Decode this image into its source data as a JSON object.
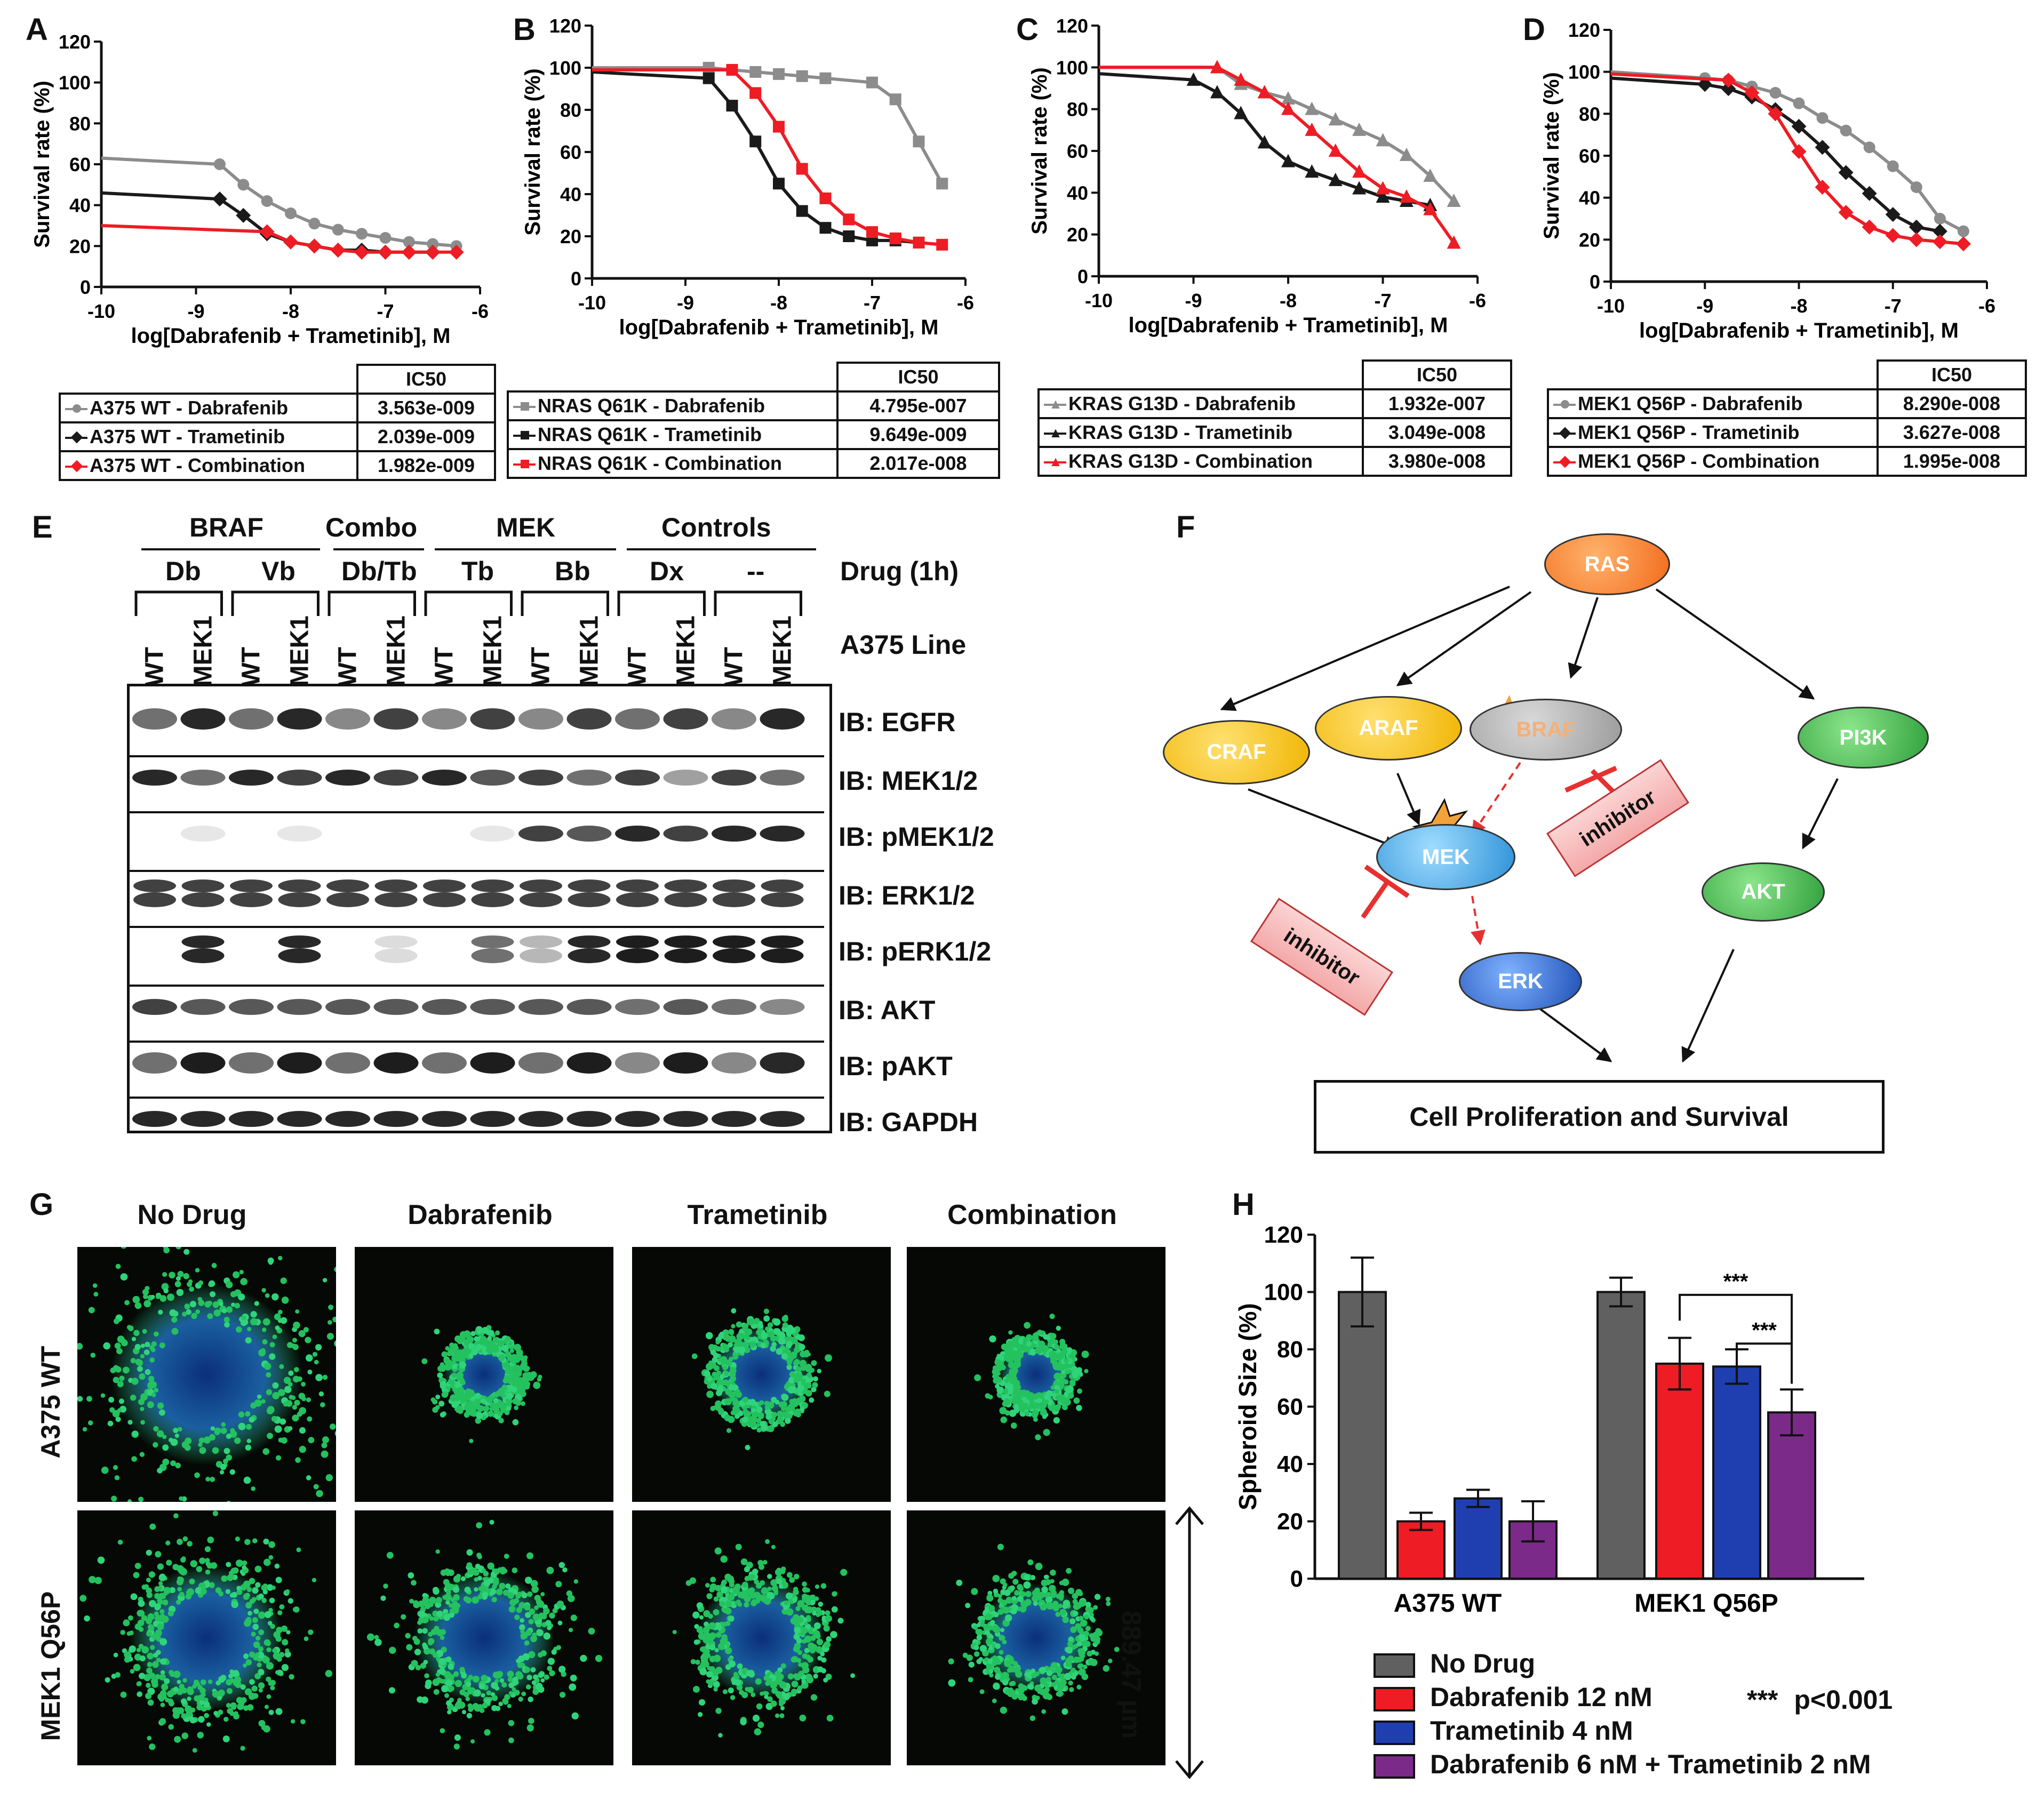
{
  "panels": {
    "A": "A",
    "B": "B",
    "C": "C",
    "D": "D",
    "E": "E",
    "F": "F",
    "G": "G",
    "H": "H"
  },
  "colors": {
    "gray": "#8c8c8c",
    "black": "#1a1a1a",
    "red": "#ee1c24",
    "blue": "#1f3fb0",
    "purple": "#7b2a8a",
    "darkgray": "#606060"
  },
  "curves": {
    "ylabel": "Survival rate (%)",
    "xlabel": "log[Dabrafenib + Trametinib], M",
    "yticks": [
      "0",
      "20",
      "40",
      "60",
      "80",
      "100",
      "120"
    ],
    "xticks": [
      "-10",
      "-9",
      "-8",
      "-7",
      "-6"
    ],
    "ic50_header": "IC50"
  },
  "chart_data": [
    {
      "type": "line",
      "panel": "A",
      "xlabel": "log[Dabrafenib + Trametinib], M",
      "ylabel": "Survival rate (%)",
      "xlim": [
        -10,
        -6
      ],
      "ylim": [
        0,
        120
      ],
      "series": [
        {
          "name": "A375 WT - Dabrafenib",
          "color": "gray",
          "ic50": "3.563e-009",
          "x": [
            -8.75,
            -8.5,
            -8.25,
            -8,
            -7.75,
            -7.5,
            -7.25,
            -7,
            -6.75,
            -6.5,
            -6.25
          ],
          "y": [
            60,
            50,
            42,
            36,
            31,
            28,
            26,
            24,
            22,
            21,
            20
          ]
        },
        {
          "name": "A375 WT - Trametinib",
          "color": "black",
          "ic50": "2.039e-009",
          "x": [
            -8.75,
            -8.5,
            -8.25,
            -8,
            -7.75,
            -7.5,
            -7.25,
            -7,
            -6.75,
            -6.5
          ],
          "y": [
            43,
            35,
            26,
            22,
            20,
            18,
            18,
            17,
            17,
            17
          ]
        },
        {
          "name": "A375 WT - Combination",
          "color": "red",
          "ic50": "1.982e-009",
          "x": [
            -8.25,
            -8,
            -7.75,
            -7.5,
            -7.25,
            -7,
            -6.75,
            -6.5,
            -6.25
          ],
          "y": [
            27,
            22,
            20,
            18,
            17,
            17,
            17,
            17,
            17
          ]
        }
      ]
    },
    {
      "type": "line",
      "panel": "B",
      "xlabel": "log[Dabrafenib + Trametinib], M",
      "ylabel": "Survival rate (%)",
      "xlim": [
        -10,
        -6
      ],
      "ylim": [
        0,
        120
      ],
      "series": [
        {
          "name": "NRAS Q61K - Dabrafenib",
          "color": "gray",
          "ic50": "4.795e-007",
          "x": [
            -8.75,
            -8.5,
            -8.25,
            -8,
            -7.75,
            -7.5,
            -7,
            -6.75,
            -6.5,
            -6.25
          ],
          "y": [
            100,
            99,
            98,
            97,
            96,
            95,
            93,
            85,
            65,
            45
          ]
        },
        {
          "name": "NRAS Q61K - Trametinib",
          "color": "black",
          "ic50": "9.649e-009",
          "x": [
            -8.75,
            -8.5,
            -8.25,
            -8,
            -7.75,
            -7.5,
            -7.25,
            -7,
            -6.75,
            -6.5
          ],
          "y": [
            95,
            82,
            65,
            45,
            32,
            24,
            20,
            18,
            18,
            17
          ]
        },
        {
          "name": "NRAS Q61K - Combination",
          "color": "red",
          "ic50": "2.017e-008",
          "x": [
            -8.5,
            -8.25,
            -8,
            -7.75,
            -7.5,
            -7.25,
            -7,
            -6.75,
            -6.5,
            -6.25
          ],
          "y": [
            99,
            88,
            72,
            52,
            38,
            28,
            22,
            19,
            17,
            16
          ]
        }
      ]
    },
    {
      "type": "line",
      "panel": "C",
      "xlabel": "log[Dabrafenib + Trametinib], M",
      "ylabel": "Survival rate (%)",
      "xlim": [
        -10,
        -6
      ],
      "ylim": [
        0,
        120
      ],
      "series": [
        {
          "name": "KRAS G13D - Dabrafenib",
          "color": "gray",
          "ic50": "1.932e-007",
          "x": [
            -8.75,
            -8.5,
            -8.25,
            -8,
            -7.75,
            -7.5,
            -7.25,
            -7,
            -6.75,
            -6.5,
            -6.25
          ],
          "y": [
            100,
            92,
            88,
            85,
            80,
            75,
            70,
            65,
            58,
            48,
            36
          ]
        },
        {
          "name": "KRAS G13D - Trametinib",
          "color": "black",
          "ic50": "3.049e-008",
          "x": [
            -9,
            -8.75,
            -8.5,
            -8.25,
            -8,
            -7.75,
            -7.5,
            -7.25,
            -7,
            -6.75,
            -6.5
          ],
          "y": [
            94,
            88,
            78,
            64,
            55,
            50,
            46,
            42,
            38,
            36,
            34
          ]
        },
        {
          "name": "KRAS G13D - Combination",
          "color": "red",
          "ic50": "3.980e-008",
          "x": [
            -8.75,
            -8.5,
            -8.25,
            -8,
            -7.75,
            -7.5,
            -7.25,
            -7,
            -6.75,
            -6.5,
            -6.25
          ],
          "y": [
            100,
            94,
            88,
            80,
            70,
            60,
            50,
            42,
            38,
            32,
            16
          ]
        }
      ]
    },
    {
      "type": "line",
      "panel": "D",
      "xlabel": "log[Dabrafenib + Trametinib], M",
      "ylabel": "Survival rate (%)",
      "xlim": [
        -10,
        -6
      ],
      "ylim": [
        0,
        120
      ],
      "series": [
        {
          "name": "MEK1 Q56P - Dabrafenib",
          "color": "gray",
          "ic50": "8.290e-008",
          "x": [
            -9,
            -8.75,
            -8.5,
            -8.25,
            -8,
            -7.75,
            -7.5,
            -7.25,
            -7,
            -6.75,
            -6.5,
            -6.25
          ],
          "y": [
            97,
            96,
            93,
            90,
            85,
            78,
            72,
            64,
            55,
            45,
            30,
            24
          ]
        },
        {
          "name": "MEK1 Q56P - Trametinib",
          "color": "black",
          "ic50": "3.627e-008",
          "x": [
            -9,
            -8.75,
            -8.5,
            -8.25,
            -8,
            -7.75,
            -7.5,
            -7.25,
            -7,
            -6.75,
            -6.5
          ],
          "y": [
            94,
            92,
            88,
            82,
            74,
            64,
            52,
            42,
            32,
            26,
            24
          ]
        },
        {
          "name": "MEK1 Q56P - Combination",
          "color": "red",
          "ic50": "1.995e-008",
          "x": [
            -8.75,
            -8.5,
            -8.25,
            -8,
            -7.75,
            -7.5,
            -7.25,
            -7,
            -6.75,
            -6.5,
            -6.25
          ],
          "y": [
            96,
            90,
            80,
            62,
            45,
            33,
            26,
            22,
            20,
            19,
            18
          ]
        }
      ]
    },
    {
      "type": "bar",
      "panel": "H",
      "ylabel": "Spheroid Size (%)",
      "ylim": [
        0,
        120
      ],
      "yticks": [
        "0",
        "20",
        "40",
        "60",
        "80",
        "100",
        "120"
      ],
      "categories": [
        "A375 WT",
        "MEK1 Q56P"
      ],
      "series": [
        {
          "name": "No Drug",
          "color": "darkgray",
          "values": [
            100,
            100
          ],
          "err": [
            12,
            5
          ]
        },
        {
          "name": "Dabrafenib 12 nM",
          "color": "red",
          "values": [
            20,
            75
          ],
          "err": [
            3,
            9
          ]
        },
        {
          "name": "Trametinib 4 nM",
          "color": "blue",
          "values": [
            28,
            74
          ],
          "err": [
            3,
            6
          ]
        },
        {
          "name": "Dabrafenib 6 nM + Trametinib 2 nM",
          "color": "purple",
          "values": [
            20,
            58
          ],
          "err": [
            7,
            8
          ]
        }
      ],
      "annotations": [
        "***",
        "***"
      ],
      "note": "p<0.001",
      "note_mark": "***"
    }
  ],
  "blot": {
    "groups": [
      "BRAF",
      "Combo",
      "MEK",
      "Controls"
    ],
    "drugs": [
      "Db",
      "Vb",
      "Db/Tb",
      "Tb",
      "Bb",
      "Dx",
      "--"
    ],
    "drug_row_label": "Drug (1h)",
    "line_row_label": "A375 Line",
    "lanes": [
      "WT",
      "MEK1",
      "WT",
      "MEK1",
      "WT",
      "MEK1",
      "WT",
      "MEK1",
      "WT",
      "MEK1",
      "WT",
      "MEK1",
      "WT",
      "MEK1"
    ],
    "rows": [
      "IB: EGFR",
      "IB: MEK1/2",
      "IB: pMEK1/2",
      "IB: ERK1/2",
      "IB: pERK1/2",
      "IB: AKT",
      "IB: pAKT",
      "IB: GAPDH"
    ]
  },
  "pathway": {
    "ras": "RAS",
    "craf": "CRAF",
    "araf": "ARAF",
    "braf": "BRAF",
    "pi3k": "PI3K",
    "mek": "MEK",
    "erk": "ERK",
    "akt": "AKT",
    "inhibitor1": "inhibitor",
    "inhibitor2": "inhibitor",
    "outcome": "Cell Proliferation and Survival"
  },
  "micro": {
    "columns": [
      "No Drug",
      "Dabrafenib",
      "Trametinib",
      "Combination"
    ],
    "rows": [
      "A375 WT",
      "MEK1 Q56P"
    ],
    "scale": "889.47 µm"
  }
}
